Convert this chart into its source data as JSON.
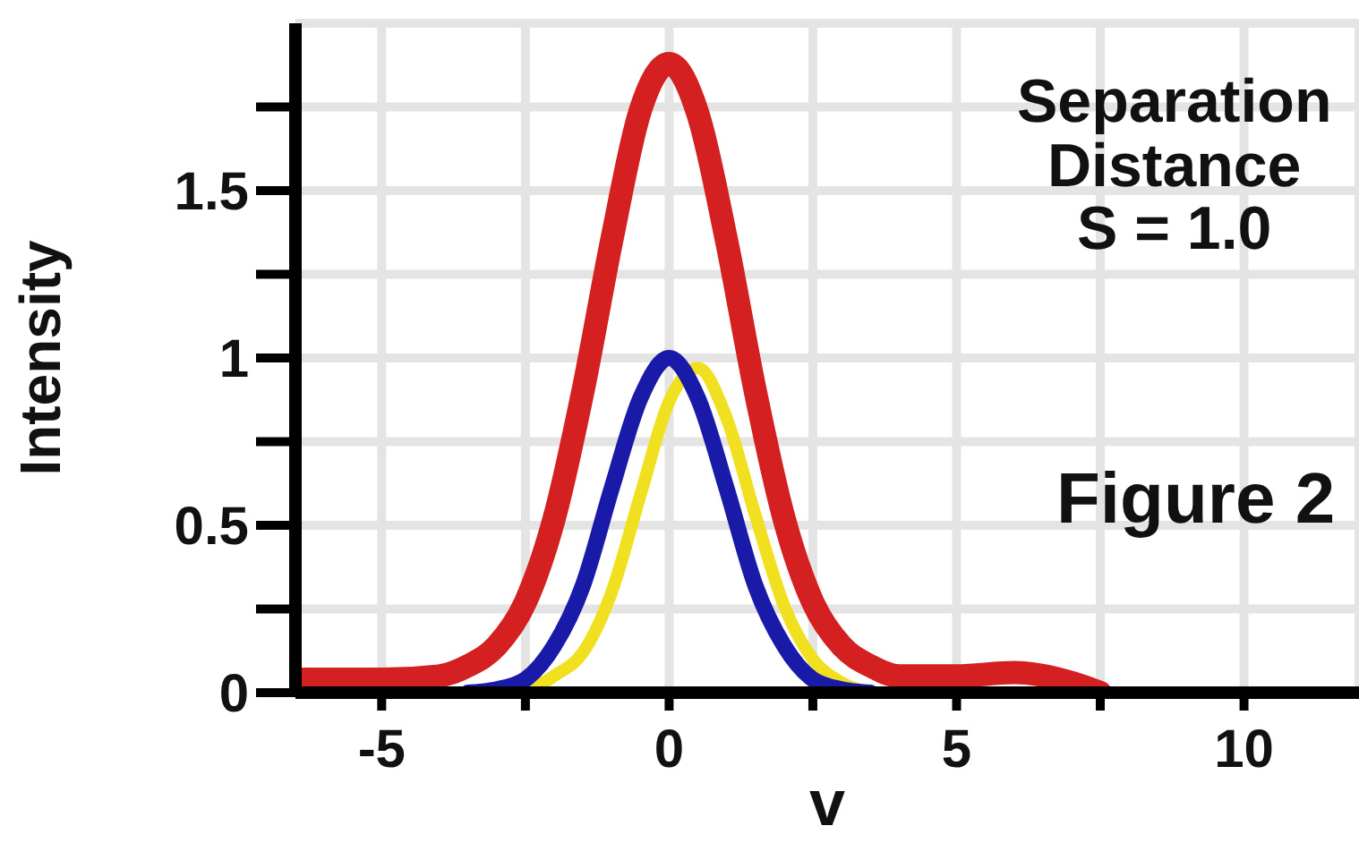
{
  "chart_data": {
    "type": "line",
    "xlabel": "v",
    "ylabel": "Intensity",
    "annotations": [
      "Separation\nDistance\nS = 1.0",
      "Figure 2"
    ],
    "xlim": [
      -6.5,
      12
    ],
    "xticks": [
      -5,
      {
        "value": -2.5,
        "label": null
      },
      0,
      {
        "value": 2.5,
        "label": null
      },
      5,
      {
        "value": 7.5,
        "label": null
      },
      10
    ],
    "ylim": [
      0,
      2
    ],
    "yticks": [
      0,
      {
        "value": 0.25,
        "label": null
      },
      0.5,
      {
        "value": 0.75,
        "label": null
      },
      1,
      {
        "value": 1.25,
        "label": null
      },
      1.5,
      {
        "value": 1.75,
        "label": null
      }
    ],
    "grid": true,
    "marker": "none",
    "line_style": "solid",
    "series": [
      {
        "color": "#d42020",
        "x": [
          -6.5,
          -5,
          -4,
          -3.5,
          -3,
          -2.5,
          -2,
          -1.5,
          -1,
          -0.5,
          0,
          0.5,
          1,
          1.5,
          2,
          2.5,
          3,
          3.5,
          4,
          5,
          6,
          7,
          7.5
        ],
        "values": [
          0.04,
          0.04,
          0.05,
          0.08,
          0.14,
          0.27,
          0.52,
          0.9,
          1.35,
          1.74,
          1.88,
          1.73,
          1.35,
          0.9,
          0.52,
          0.27,
          0.14,
          0.08,
          0.05,
          0.05,
          0.06,
          0.03,
          0
        ]
      },
      {
        "color": "#f0e020",
        "x": [
          -2.5,
          -2,
          -1.5,
          -1,
          -0.5,
          0,
          0.5,
          1,
          1.5,
          2,
          2.5,
          3,
          3.5
        ],
        "values": [
          0,
          0.05,
          0.12,
          0.3,
          0.59,
          0.87,
          0.97,
          0.82,
          0.53,
          0.26,
          0.1,
          0.03,
          0
        ]
      },
      {
        "color": "#1a1aa8",
        "x": [
          -3.5,
          -3,
          -2.5,
          -2,
          -1.5,
          -1,
          -0.5,
          0,
          0.5,
          1,
          1.5,
          2,
          2.5,
          3,
          3.5
        ],
        "values": [
          0,
          0.01,
          0.04,
          0.14,
          0.32,
          0.61,
          0.88,
          1,
          0.88,
          0.61,
          0.32,
          0.14,
          0.04,
          0.01,
          0
        ]
      }
    ]
  }
}
